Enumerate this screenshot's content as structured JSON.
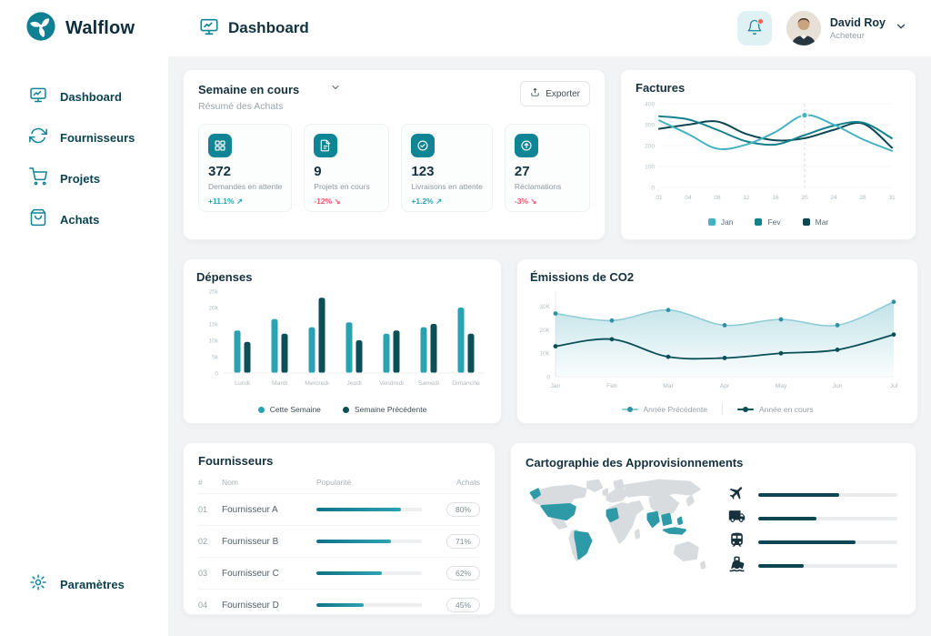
{
  "brand": {
    "name": "Walflow"
  },
  "header": {
    "title": "Dashboard",
    "user": {
      "name": "David Roy",
      "role": "Acheteur"
    }
  },
  "sidebar": {
    "items": [
      {
        "id": "dashboard",
        "label": "Dashboard"
      },
      {
        "id": "fournisseurs",
        "label": "Fournisseurs"
      },
      {
        "id": "projets",
        "label": "Projets"
      },
      {
        "id": "achats",
        "label": "Achats"
      }
    ],
    "settings_label": "Paramètres"
  },
  "summary": {
    "title": "Semaine en cours",
    "subtitle": "Résumé des Achats",
    "export_label": "Exporter",
    "stats": [
      {
        "value": "372",
        "label": "Demandes en attente",
        "delta": "+11.1%",
        "arrow": "↗",
        "trend": "up"
      },
      {
        "value": "9",
        "label": "Projets en cours",
        "delta": "-12%",
        "arrow": "↘",
        "trend": "down"
      },
      {
        "value": "123",
        "label": "Livraisons en attente",
        "delta": "+1.2%",
        "arrow": "↗",
        "trend": "up"
      },
      {
        "value": "27",
        "label": "Réclamations",
        "delta": "-3%",
        "arrow": "↘",
        "trend": "down"
      }
    ]
  },
  "fournisseurs": {
    "title": "Fournisseurs",
    "columns": {
      "num": "#",
      "name": "Nom",
      "popularity": "Popularité",
      "achats": "Achats"
    },
    "rows": [
      {
        "num": "01",
        "name": "Fournisseur A",
        "popularity": 80,
        "achats": "80%"
      },
      {
        "num": "02",
        "name": "Fournisseur B",
        "popularity": 71,
        "achats": "71%"
      },
      {
        "num": "03",
        "name": "Fournisseur C",
        "popularity": 62,
        "achats": "62%"
      },
      {
        "num": "04",
        "name": "Fournisseur D",
        "popularity": 45,
        "achats": "45%"
      }
    ]
  },
  "carto": {
    "title": "Cartographie des Approvisionnements",
    "modes": [
      {
        "name": "avion",
        "value": 58
      },
      {
        "name": "camion",
        "value": 42
      },
      {
        "name": "train",
        "value": 70
      },
      {
        "name": "navire",
        "value": 33
      }
    ]
  },
  "chart_data": [
    {
      "id": "factures",
      "type": "line",
      "title": "Factures",
      "x": [
        "01",
        "04",
        "08",
        "12",
        "16",
        "20",
        "24",
        "28",
        "31"
      ],
      "ylim": [
        0,
        400
      ],
      "yticks": [
        0,
        100,
        200,
        300,
        400
      ],
      "ytick_labels": [
        "0",
        "100",
        "200",
        "300",
        "400"
      ],
      "series": [
        {
          "name": "Jan",
          "color": "#45b2c1",
          "values": [
            320,
            255,
            185,
            205,
            265,
            345,
            300,
            230,
            175
          ]
        },
        {
          "name": "Fev",
          "color": "#14808e",
          "values": [
            340,
            325,
            275,
            220,
            205,
            250,
            295,
            310,
            235
          ]
        },
        {
          "name": "Mar",
          "color": "#0a4751",
          "values": [
            280,
            300,
            315,
            255,
            225,
            235,
            275,
            305,
            190
          ]
        }
      ],
      "marker": {
        "series": 0,
        "index": 5
      },
      "legend_position": "bottom",
      "grid": false
    },
    {
      "id": "depenses",
      "type": "bar",
      "title": "Dépenses",
      "categories": [
        "Lundi",
        "Mardi",
        "Mercredi",
        "Jeudi",
        "Vendredi",
        "Samedi",
        "Dimanche"
      ],
      "ylim": [
        0,
        25000
      ],
      "yticks": [
        0,
        5000,
        10000,
        15000,
        20000,
        25000
      ],
      "ytick_labels": [
        "0",
        "5k",
        "10k",
        "15k",
        "20k",
        "25k"
      ],
      "series": [
        {
          "name": "Cette Semaine",
          "color": "#2ba2b1",
          "values": [
            13000,
            16500,
            14000,
            15500,
            12000,
            14000,
            20000
          ]
        },
        {
          "name": "Semaine Précédente",
          "color": "#0b4f58",
          "values": [
            9500,
            12000,
            23000,
            10000,
            13000,
            15000,
            12000
          ]
        }
      ],
      "legend_position": "bottom",
      "grid": false
    },
    {
      "id": "co2",
      "type": "area",
      "title": "Émissions de CO2",
      "x": [
        "Jan",
        "Feb",
        "Mar",
        "Apr",
        "May",
        "Jun",
        "Jul"
      ],
      "ylim": [
        0,
        35000
      ],
      "yticks": [
        0,
        10000,
        20000,
        30000
      ],
      "ytick_labels": [
        "0",
        "10K",
        "20K",
        "30K"
      ],
      "series": [
        {
          "name": "Année Précédente",
          "color": "#8fccd6",
          "dot_color": "#2f93a3",
          "fill": true,
          "values": [
            27000,
            24000,
            28500,
            22000,
            24500,
            22000,
            32000
          ]
        },
        {
          "name": "Année en cours",
          "color": "#0b4f58",
          "dot_color": "#0b4f58",
          "fill": false,
          "values": [
            13000,
            16000,
            8500,
            8000,
            10000,
            11500,
            18000
          ]
        }
      ],
      "legend_position": "bottom",
      "grid": false
    }
  ]
}
